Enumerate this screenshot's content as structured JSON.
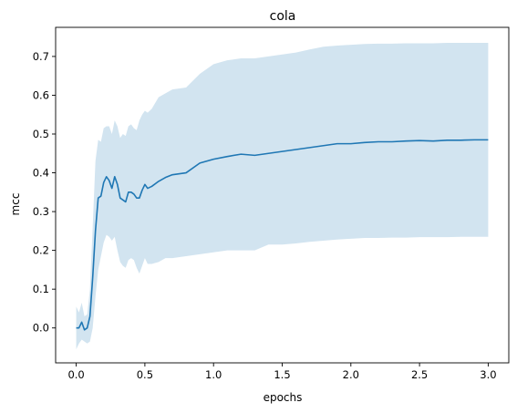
{
  "chart_data": {
    "type": "line",
    "title": "cola",
    "xlabel": "epochs",
    "ylabel": "mcc",
    "xlim": [
      -0.15,
      3.15
    ],
    "ylim": [
      -0.09,
      0.775
    ],
    "xticks": [
      0.0,
      0.5,
      1.0,
      1.5,
      2.0,
      2.5,
      3.0
    ],
    "xtick_labels": [
      "0.0",
      "0.5",
      "1.0",
      "1.5",
      "2.0",
      "2.5",
      "3.0"
    ],
    "yticks": [
      0.0,
      0.1,
      0.2,
      0.3,
      0.4,
      0.5,
      0.6,
      0.7
    ],
    "ytick_labels": [
      "0.0",
      "0.1",
      "0.2",
      "0.3",
      "0.4",
      "0.5",
      "0.6",
      "0.7"
    ],
    "grid": false,
    "legend": false,
    "colors": {
      "line": "#1f77b4",
      "band": "#1f77b4",
      "band_opacity": 0.2
    },
    "series": [
      {
        "x": [
          0.0,
          0.02,
          0.04,
          0.06,
          0.08,
          0.1,
          0.12,
          0.14,
          0.16,
          0.18,
          0.2,
          0.22,
          0.24,
          0.26,
          0.28,
          0.3,
          0.32,
          0.34,
          0.36,
          0.38,
          0.4,
          0.42,
          0.44,
          0.46,
          0.48,
          0.5,
          0.52,
          0.55,
          0.6,
          0.65,
          0.7,
          0.8,
          0.9,
          1.0,
          1.1,
          1.2,
          1.3,
          1.4,
          1.5,
          1.6,
          1.7,
          1.8,
          1.9,
          2.0,
          2.1,
          2.2,
          2.3,
          2.4,
          2.5,
          2.6,
          2.7,
          2.8,
          2.9,
          3.0
        ],
        "y": [
          0.0,
          0.0,
          0.015,
          -0.005,
          0.0,
          0.03,
          0.13,
          0.25,
          0.335,
          0.34,
          0.375,
          0.39,
          0.38,
          0.36,
          0.39,
          0.37,
          0.335,
          0.33,
          0.325,
          0.35,
          0.35,
          0.345,
          0.335,
          0.335,
          0.355,
          0.37,
          0.36,
          0.365,
          0.378,
          0.388,
          0.395,
          0.4,
          0.425,
          0.435,
          0.442,
          0.448,
          0.445,
          0.45,
          0.455,
          0.46,
          0.465,
          0.47,
          0.475,
          0.475,
          0.478,
          0.48,
          0.48,
          0.482,
          0.483,
          0.482,
          0.484,
          0.484,
          0.485,
          0.485
        ],
        "lower": [
          -0.055,
          -0.04,
          -0.03,
          -0.035,
          -0.04,
          -0.035,
          0.0,
          0.08,
          0.15,
          0.185,
          0.22,
          0.24,
          0.235,
          0.225,
          0.235,
          0.2,
          0.17,
          0.16,
          0.155,
          0.175,
          0.18,
          0.175,
          0.155,
          0.14,
          0.16,
          0.18,
          0.165,
          0.165,
          0.17,
          0.18,
          0.18,
          0.185,
          0.19,
          0.195,
          0.2,
          0.2,
          0.2,
          0.215,
          0.215,
          0.218,
          0.222,
          0.225,
          0.228,
          0.23,
          0.232,
          0.232,
          0.233,
          0.233,
          0.234,
          0.234,
          0.234,
          0.235,
          0.235,
          0.235
        ],
        "upper": [
          0.055,
          0.04,
          0.065,
          0.03,
          0.035,
          0.1,
          0.26,
          0.43,
          0.485,
          0.48,
          0.515,
          0.52,
          0.52,
          0.5,
          0.535,
          0.52,
          0.49,
          0.5,
          0.495,
          0.52,
          0.525,
          0.515,
          0.51,
          0.535,
          0.55,
          0.56,
          0.555,
          0.565,
          0.595,
          0.605,
          0.615,
          0.62,
          0.655,
          0.68,
          0.69,
          0.695,
          0.695,
          0.7,
          0.705,
          0.71,
          0.718,
          0.725,
          0.728,
          0.73,
          0.732,
          0.733,
          0.733,
          0.734,
          0.734,
          0.734,
          0.735,
          0.735,
          0.735,
          0.735
        ]
      }
    ]
  }
}
